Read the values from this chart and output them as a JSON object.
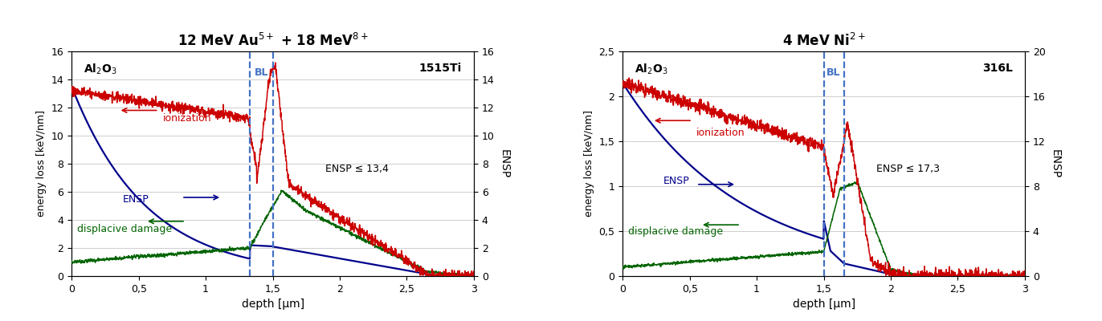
{
  "panel1": {
    "title": "12 MeV Au$^{5+}$ + 18 MeV$^{8+}$",
    "label_left": "Al$_2$O$_3$",
    "label_right": "1515Ti",
    "ensp_text": "ENSP ≤ 13,4",
    "bl_lines": [
      1.33,
      1.5
    ],
    "ylim_left": [
      0,
      16
    ],
    "ylim_right": [
      0,
      16
    ],
    "yticks_left": [
      0,
      2,
      4,
      6,
      8,
      10,
      12,
      14,
      16
    ],
    "yticks_right": [
      0,
      2,
      4,
      6,
      8,
      10,
      12,
      14,
      16
    ],
    "xlim": [
      0,
      3
    ],
    "xticks": [
      0,
      0.5,
      1.0,
      1.5,
      2.0,
      2.5,
      3.0
    ],
    "xlabel": "depth [μm]",
    "ylabel_left": "energy loss [keV/nm]",
    "ylabel_right": "ENSP",
    "ionization_color": "#cc0000",
    "ensp_color": "#00008b",
    "damage_color": "#006400",
    "bl_color": "#4472c4"
  },
  "panel2": {
    "title": "4 MeV Ni$^{2+}$",
    "label_left": "Al$_2$O$_3$",
    "label_right": "316L",
    "ensp_text": "ENSP ≤ 17,3",
    "bl_lines": [
      1.5,
      1.65
    ],
    "ylim_left": [
      0,
      2.5
    ],
    "ylim_right": [
      0,
      20
    ],
    "yticks_left": [
      0.0,
      0.5,
      1.0,
      1.5,
      2.0,
      2.5
    ],
    "yticks_right": [
      0,
      4,
      8,
      12,
      16,
      20
    ],
    "xlim": [
      0,
      3
    ],
    "xticks": [
      0,
      0.5,
      1.0,
      1.5,
      2.0,
      2.5,
      3.0
    ],
    "xlabel": "depth [μm]",
    "ylabel_left": "energy loss [keV/nm]",
    "ylabel_right": "ENSP",
    "ionization_color": "#cc0000",
    "ensp_color": "#00008b",
    "damage_color": "#006400",
    "bl_color": "#4472c4"
  },
  "background_color": "#ffffff",
  "grid_color": "#bbbbbb"
}
